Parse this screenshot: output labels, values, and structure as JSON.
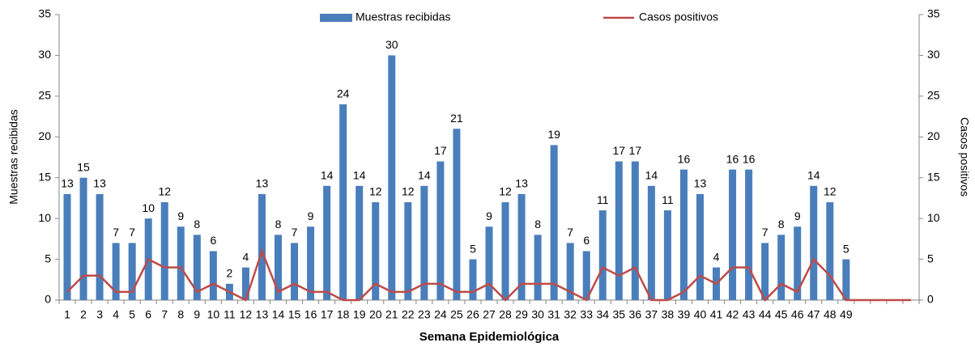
{
  "chart_data": {
    "type": "bar",
    "categories": [
      "1",
      "2",
      "3",
      "4",
      "5",
      "6",
      "7",
      "8",
      "9",
      "10",
      "11",
      "12",
      "13",
      "14",
      "15",
      "16",
      "17",
      "18",
      "19",
      "20",
      "21",
      "22",
      "23",
      "24",
      "25",
      "26",
      "27",
      "28",
      "29",
      "30",
      "31",
      "32",
      "33",
      "34",
      "35",
      "36",
      "37",
      "38",
      "39",
      "40",
      "41",
      "42",
      "43",
      "44",
      "45",
      "46",
      "47",
      "48",
      "49",
      null,
      null,
      null,
      null
    ],
    "series": [
      {
        "name": "Muestras recibidas",
        "type": "bar",
        "color": "#4a7ebb",
        "values": [
          13,
          15,
          13,
          7,
          7,
          10,
          12,
          9,
          8,
          6,
          2,
          4,
          13,
          8,
          7,
          9,
          14,
          24,
          14,
          12,
          30,
          12,
          14,
          17,
          21,
          5,
          9,
          12,
          13,
          8,
          19,
          7,
          6,
          11,
          17,
          17,
          14,
          11,
          16,
          13,
          4,
          16,
          16,
          7,
          8,
          9,
          14,
          12,
          5,
          null,
          null,
          null,
          null
        ]
      },
      {
        "name": "Casos positivos",
        "type": "line",
        "axis": "y2",
        "color": "#be4b48",
        "values": [
          1,
          3,
          3,
          1,
          1,
          5,
          4,
          4,
          1,
          2,
          1,
          0,
          6,
          1,
          2,
          1,
          1,
          0,
          0,
          2,
          1,
          1,
          2,
          2,
          1,
          1,
          2,
          0,
          2,
          2,
          2,
          1,
          0,
          4,
          3,
          4,
          0,
          0,
          1,
          3,
          2,
          4,
          4,
          0,
          2,
          1,
          5,
          3,
          0,
          0,
          0,
          0,
          0
        ]
      }
    ],
    "xlabel": "Semana Epidemiológica",
    "ylabel": "Muestras recibidas",
    "y2label": "Casos positivos",
    "ylim": [
      0,
      35
    ],
    "yticks": [
      0,
      5,
      10,
      15,
      20,
      25,
      30,
      35
    ],
    "y2lim": [
      0,
      35
    ],
    "y2ticks": [
      0,
      5,
      10,
      15,
      20,
      25,
      30,
      35
    ],
    "legend": "top",
    "grid": false
  }
}
